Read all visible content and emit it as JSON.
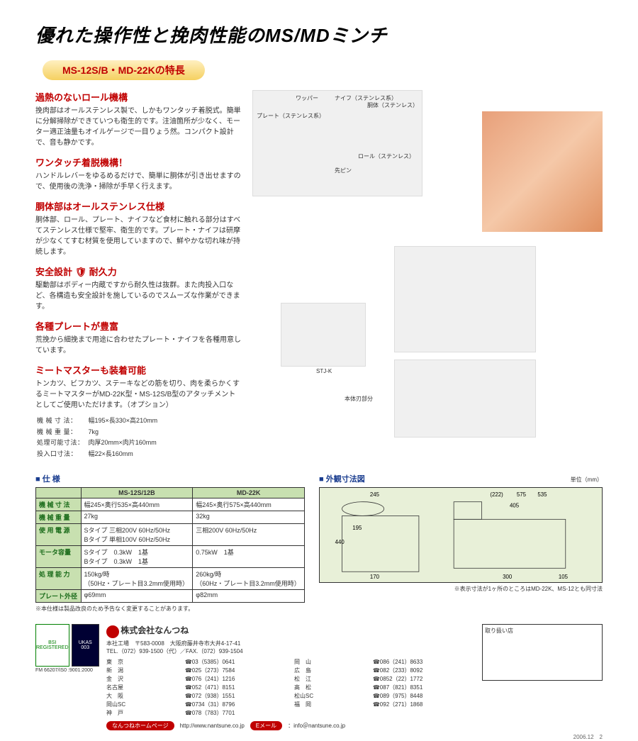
{
  "title": "優れた操作性と挽肉性能のMS/MDミンチ",
  "banner": "MS-12S/B・MD-22Kの特長",
  "features": [
    {
      "title": "過熱のないロール機構",
      "body": "挽肉部はオールステンレス製で、しかもワンタッチ着脱式。簡単に分解掃除ができていつも衛生的です。注油箇所が少なく、モーター適正油量もオイルゲージで一目りょう然。コンパクト設計で、音も静かです。"
    },
    {
      "title": "ワンタッチ着脱機構！",
      "body": "ハンドルレバーをゆるめるだけで、簡単に胴体が引き出せますので、使用後の洗浄・掃除が手早く行えます。"
    },
    {
      "title": "胴体部はオールステンレス仕様",
      "body": "胴体部、ロール、プレート、ナイフなど食材に触れる部分はすべてステンレス仕様で堅牢、衛生的です。プレート・ナイフは研摩が少なくてすむ材質を使用していますので、鮮やかな切れ味が持続します。"
    },
    {
      "title": "安全設計 🛡 耐久力",
      "body": "駆動部はボディー内蔵ですから耐久性は抜群。また肉投入口など、各構造も安全設計を施しているのでスムーズな作業ができます。"
    },
    {
      "title": "各種プレートが豊富",
      "body": "荒挽から細挽まで用途に合わせたプレート・ナイフを各種用意しています。"
    },
    {
      "title": "ミートマスターも装着可能",
      "body": "トンカツ、ビフカツ、ステーキなどの筋を切り、肉を柔らかくするミートマスターがMD-22K型・MS-12S/B型のアタッチメントとしてご使用いただけます。（オプション）"
    }
  ],
  "stj_specs": {
    "rows": [
      {
        "label": "機 械 寸 法：",
        "value": "幅195×長330×高210mm"
      },
      {
        "label": "機 械 重 量：",
        "value": "7kg"
      },
      {
        "label": "処理可能寸法：",
        "value": "肉厚20mm×肉片160mm"
      },
      {
        "label": "投入口寸法：",
        "value": "幅22×長160mm"
      }
    ]
  },
  "diagram_labels": [
    "ワッパー",
    "ナイフ（ステンレス系）",
    "胴体（ステンレス）",
    "プレート（ステンレス系）",
    "先ピン",
    "ロール（ステンレス）"
  ],
  "stj_caption": "STJ-K",
  "blade_caption": "本体刃部分",
  "spec_header": "仕 様",
  "spec_table": {
    "columns": [
      "",
      "MS-12S/12B",
      "MD-22K"
    ],
    "rows": [
      {
        "label": "機 械 寸 法",
        "c1": "幅245×奥行535×高440mm",
        "c2": "幅245×奥行575×高440mm"
      },
      {
        "label": "機 械 重 量",
        "c1": "27kg",
        "c2": "32kg"
      },
      {
        "label": "使 用 電 源",
        "c1": "Sタイプ 三相200V 60Hz/50Hz\nBタイプ 単相100V 60Hz/50Hz",
        "c2": "三相200V 60Hz/50Hz"
      },
      {
        "label": "モータ容量",
        "c1": "Sタイプ　0.3kW　1基\nBタイプ　0.3kW　1基",
        "c2": "0.75kW　1基"
      },
      {
        "label": "処 理 能 力",
        "c1": "150kg/時\n（50Hz・プレート目3.2mm使用時）",
        "c2": "260kg/時\n（60Hz・プレート目3.2mm使用時）"
      },
      {
        "label": "プレート外径",
        "c1": "φ69mm",
        "c2": "φ82mm"
      }
    ]
  },
  "spec_note": "※本仕様は製品改良のため予告なく変更することがあります。",
  "dim_header": "外観寸法図",
  "dim_unit": "単位（mm）",
  "dim_values": {
    "front_w": "245",
    "front_h": "440",
    "front_base": "170",
    "front_hopper": "195",
    "side_total": "575",
    "side_paren1": "(222)",
    "side_paren2": "535",
    "side_body": "405",
    "side_back": "300",
    "side_front": "105"
  },
  "dim_note": "※表示寸法が1ヶ所のところはMD-22K、MS-12とも同寸法",
  "company": {
    "name": "株式会社なんつね",
    "addr": "本社工場　〒583-0008　大阪府藤井寺市大井4-17-41\nTEL.（072）939-1500（代）／FAX.（072）939-1504",
    "phones": [
      [
        "東　京",
        "☎03（5385）0641",
        "岡　山",
        "☎086（241）8633"
      ],
      [
        "新　潟",
        "☎025（273）7584",
        "広　島",
        "☎082（233）8092"
      ],
      [
        "金　沢",
        "☎076（241）1216",
        "松　江",
        "☎0852（22）1772"
      ],
      [
        "名古屋",
        "☎052（471）8151",
        "高　松",
        "☎087（821）8351"
      ],
      [
        "大　阪",
        "☎072（938）1551",
        "松山SC",
        "☎089（975）8448"
      ],
      [
        "岡山SC",
        "☎0734（31）8796",
        "福　岡",
        "☎092（271）1868"
      ],
      [
        "神　戸",
        "☎078（783）7701",
        "",
        ""
      ]
    ],
    "url_label": "なんつねホームページ",
    "url": "http://www.nantsune.co.jp",
    "email_label": "Eメール",
    "email": "：info＠nantsune.co.jp"
  },
  "dealer_label": "取り扱い店",
  "cert_text": "FM 66207/IS0 :9001:2000",
  "date": "2006.12　2"
}
